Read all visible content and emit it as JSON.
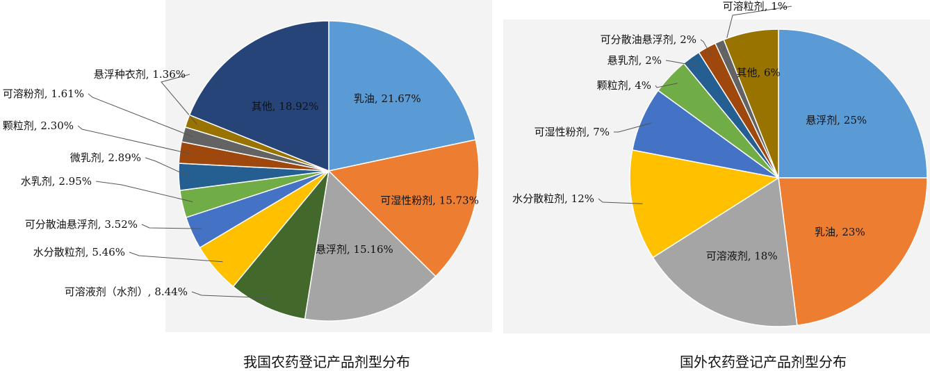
{
  "chart_data": [
    {
      "type": "pie",
      "caption": "我国农药登记产品剂型分布",
      "slices": [
        {
          "name": "乳油",
          "value": 21.67,
          "label": "乳油, 21.67%",
          "color": "#5b9bd5"
        },
        {
          "name": "可湿性粉剂",
          "value": 15.73,
          "label": "可湿性粉剂, 15.73%",
          "color": "#ed7d31"
        },
        {
          "name": "悬浮剂",
          "value": 15.16,
          "label": "悬浮剂, 15.16%",
          "color": "#a5a5a5"
        },
        {
          "name": "可溶液剂（水剂）",
          "value": 8.44,
          "label": "可溶液剂（水剂）, 8.44%",
          "color": "#43682b"
        },
        {
          "name": "水分散粒剂",
          "value": 5.46,
          "label": "水分散粒剂, 5.46%",
          "color": "#ffc000"
        },
        {
          "name": "可分散油悬浮剂",
          "value": 3.52,
          "label": "可分散油悬浮剂, 3.52%",
          "color": "#4472c4"
        },
        {
          "name": "水乳剂",
          "value": 2.95,
          "label": "水乳剂, 2.95%",
          "color": "#70ad47"
        },
        {
          "name": "微乳剂",
          "value": 2.89,
          "label": "微乳剂, 2.89%",
          "color": "#255e91"
        },
        {
          "name": "颗粒剂",
          "value": 2.3,
          "label": "颗粒剂, 2.30%",
          "color": "#9e480e"
        },
        {
          "name": "可溶粉剂",
          "value": 1.61,
          "label": "可溶粉剂, 1.61%",
          "color": "#636363"
        },
        {
          "name": "悬浮种衣剂",
          "value": 1.36,
          "label": "悬浮种衣剂, 1.36%",
          "color": "#997300"
        },
        {
          "name": "其他",
          "value": 18.92,
          "label": "其他, 18.92%",
          "color": "#264478"
        }
      ]
    },
    {
      "type": "pie",
      "caption": "国外农药登记产品剂型分布",
      "slices": [
        {
          "name": "悬浮剂",
          "value": 25,
          "label": "悬浮剂, 25%",
          "color": "#5b9bd5"
        },
        {
          "name": "乳油",
          "value": 23,
          "label": "乳油, 23%",
          "color": "#ed7d31"
        },
        {
          "name": "可溶液剂",
          "value": 18,
          "label": "可溶液剂, 18%",
          "color": "#a5a5a5"
        },
        {
          "name": "水分散粒剂",
          "value": 12,
          "label": "水分散粒剂, 12%",
          "color": "#ffc000"
        },
        {
          "name": "可湿性粉剂",
          "value": 7,
          "label": "可湿性粉剂, 7%",
          "color": "#4472c4"
        },
        {
          "name": "颗粒剂",
          "value": 4,
          "label": "颗粒剂, 4%",
          "color": "#70ad47"
        },
        {
          "name": "悬乳剂",
          "value": 2,
          "label": "悬乳剂, 2%",
          "color": "#255e91"
        },
        {
          "name": "可分散油悬浮剂",
          "value": 2,
          "label": "可分散油悬浮剂, 2%",
          "color": "#9e480e"
        },
        {
          "name": "可溶粒剂",
          "value": 1,
          "label": "可溶粒剂, 1%",
          "color": "#636363"
        },
        {
          "name": "其他",
          "value": 6,
          "label": "其他, 6%",
          "color": "#997300"
        }
      ]
    }
  ]
}
